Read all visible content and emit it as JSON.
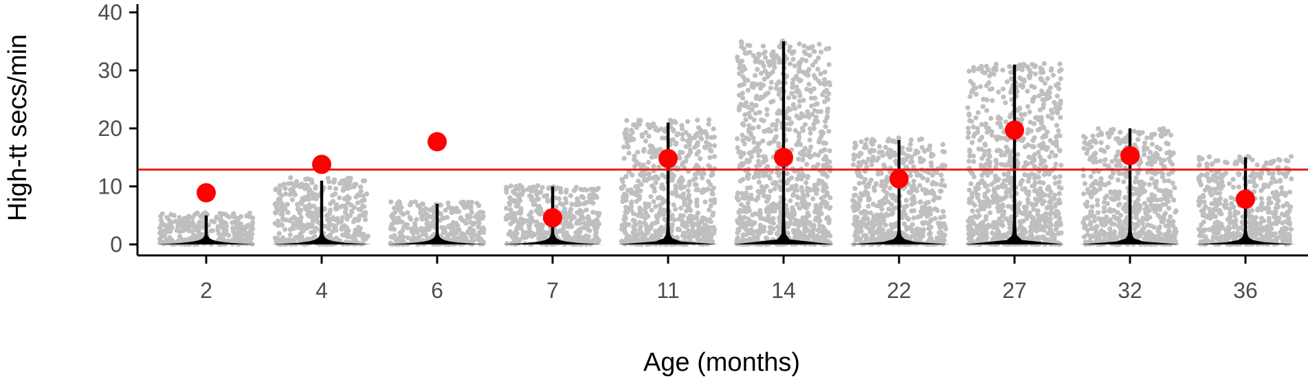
{
  "chart_data": {
    "type": "scatter",
    "xlabel": "Age (months)",
    "ylabel": "High-tt secs/min",
    "categories": [
      "2",
      "4",
      "6",
      "7",
      "11",
      "14",
      "22",
      "27",
      "32",
      "36"
    ],
    "ylim": [
      0,
      40
    ],
    "yticks": [
      0,
      10,
      20,
      30,
      40
    ],
    "grid": false,
    "legend": "none",
    "reference_line": {
      "y": 12.9,
      "color": "#e41a1c"
    },
    "series": [
      {
        "kind": "mean-point",
        "color": "#ff0000",
        "values": [
          8.9,
          13.8,
          17.7,
          4.6,
          14.8,
          15.0,
          11.3,
          19.7,
          15.3,
          7.8
        ]
      },
      {
        "kind": "violin-max",
        "color": "#000000",
        "values": [
          5,
          11,
          7,
          10,
          21,
          35,
          18,
          31,
          20,
          15
        ]
      },
      {
        "kind": "jitter-max",
        "color": "#bfbfbf",
        "values": [
          5.5,
          11.5,
          7.5,
          10.2,
          21.5,
          35.2,
          18.5,
          31.2,
          20.0,
          15.2
        ]
      }
    ]
  }
}
